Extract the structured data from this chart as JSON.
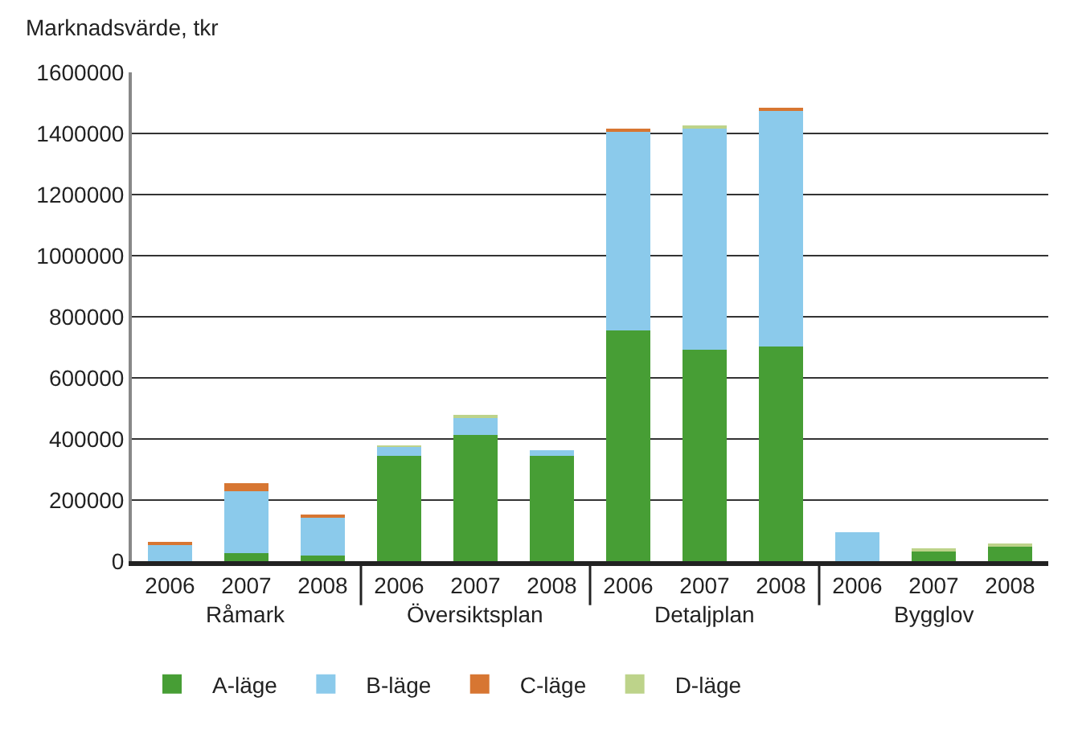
{
  "chart_data": {
    "type": "bar",
    "stacked": true,
    "ylabel": "Marknadsvärde, tkr",
    "categories": [
      "2006",
      "2007",
      "2008",
      "2006",
      "2007",
      "2008",
      "2006",
      "2007",
      "2008",
      "2006",
      "2007",
      "2008"
    ],
    "annotations": [
      "Råmark",
      "Översiktsplan",
      "Detaljplan",
      "Bygglov"
    ],
    "series": [
      {
        "name": "A-läge",
        "color": "#479e35",
        "values": [
          null,
          27000,
          18000,
          346000,
          414000,
          346000,
          755000,
          693000,
          702000,
          null,
          36000,
          51000
        ]
      },
      {
        "name": "B-läge",
        "color": "#8bcaeb",
        "values": [
          56000,
          203000,
          127000,
          29000,
          58000,
          18000,
          653000,
          726000,
          773000,
          94000,
          null,
          null
        ]
      },
      {
        "name": "C-läge",
        "color": "#d77632",
        "values": [
          6000,
          24000,
          5000,
          null,
          null,
          null,
          6000,
          null,
          5000,
          null,
          null,
          null
        ]
      },
      {
        "name": "D-läge",
        "color": "#bdd38a",
        "values": [
          null,
          null,
          null,
          3000,
          3000,
          null,
          null,
          3000,
          null,
          null,
          3000,
          3000
        ]
      }
    ],
    "ylim": [
      0,
      1600000
    ],
    "yticks": [
      0,
      200000,
      400000,
      600000,
      800000,
      1000000,
      1200000,
      1400000,
      1600000
    ],
    "grid": "y",
    "legend": "bottom"
  }
}
